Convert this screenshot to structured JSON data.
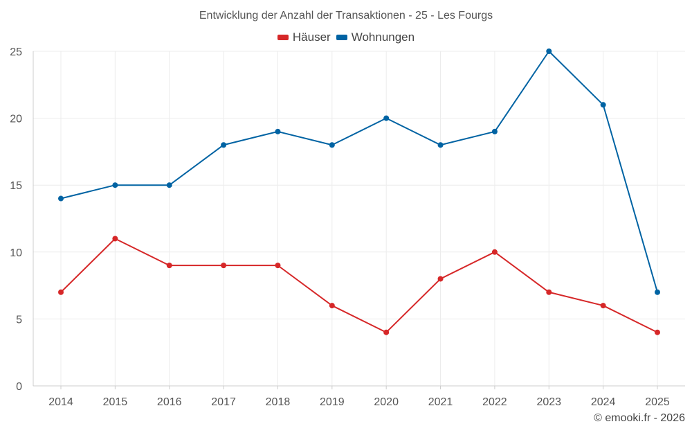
{
  "chart_data": {
    "type": "line",
    "title": "Entwicklung der Anzahl der Transaktionen - 25 - Les Fourgs",
    "xlabel": "",
    "ylabel": "",
    "x": [
      "2014",
      "2015",
      "2016",
      "2017",
      "2018",
      "2019",
      "2020",
      "2021",
      "2022",
      "2023",
      "2024",
      "2025"
    ],
    "ylim": [
      0,
      25
    ],
    "yticks": [
      "0",
      "5",
      "10",
      "15",
      "20",
      "25"
    ],
    "grid": true,
    "legend_position": "top-center",
    "series": [
      {
        "name": "Häuser",
        "color": "#d62728",
        "values": [
          7,
          11,
          9,
          9,
          9,
          6,
          4,
          8,
          10,
          7,
          6,
          4
        ]
      },
      {
        "name": "Wohnungen",
        "color": "#0063a3",
        "values": [
          14,
          15,
          15,
          18,
          19,
          18,
          20,
          18,
          19,
          25,
          21,
          7
        ]
      }
    ]
  },
  "footer": {
    "credit": "© emooki.fr - 2026"
  }
}
